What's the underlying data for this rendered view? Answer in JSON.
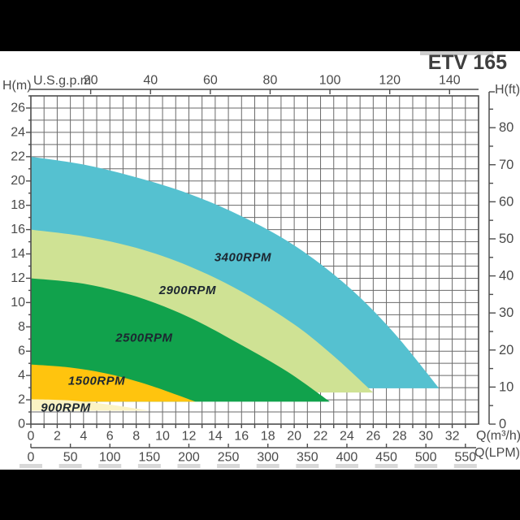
{
  "page": {
    "title": "ETV 165"
  },
  "chart_data": {
    "type": "area",
    "title": "ETV 165",
    "grid": true,
    "x_axis_bottom": {
      "label": "Q(m³/h)",
      "min": 0,
      "max": 34,
      "minor_tick_step": 1,
      "tick_labels": [
        0,
        2,
        4,
        6,
        8,
        10,
        12,
        14,
        16,
        18,
        20,
        22,
        24,
        26,
        28,
        30,
        32
      ]
    },
    "x_axis_secondary": {
      "label": "Q(LPM)",
      "tick_labels": [
        0,
        50,
        100,
        150,
        200,
        250,
        300,
        350,
        400,
        450,
        500,
        550
      ]
    },
    "x_axis_top": {
      "label": "U.S.g.p.m",
      "tick_labels": [
        20,
        40,
        60,
        80,
        100,
        120,
        140
      ]
    },
    "y_axis_left": {
      "label": "H(m)",
      "min": 0,
      "max": 27,
      "minor_tick_step": 1,
      "tick_labels": [
        0,
        2,
        4,
        6,
        8,
        10,
        12,
        14,
        16,
        18,
        20,
        22,
        24,
        26
      ]
    },
    "y_axis_right": {
      "label": "H(ft)",
      "tick_labels": [
        0,
        10,
        20,
        30,
        40,
        50,
        60,
        70,
        80
      ],
      "minor_tick_step": 5
    },
    "series": [
      {
        "name": "3400RPM",
        "color": "#55c1d0",
        "base": 2.95,
        "label_at": [
          16.1,
          13.7
        ],
        "points": [
          [
            0,
            22
          ],
          [
            4,
            21.35
          ],
          [
            8,
            20.3
          ],
          [
            12,
            18.95
          ],
          [
            16,
            17.1
          ],
          [
            20,
            14.7
          ],
          [
            24,
            11.4
          ],
          [
            27.5,
            7.6
          ],
          [
            31,
            2.95
          ]
        ]
      },
      {
        "name": "2900RPM",
        "color": "#cfe294",
        "base": 2.6,
        "label_at": [
          11.9,
          11.0
        ],
        "points": [
          [
            0,
            16
          ],
          [
            4,
            15.45
          ],
          [
            8,
            14.5
          ],
          [
            12,
            13.0
          ],
          [
            16,
            10.9
          ],
          [
            20,
            8.2
          ],
          [
            23,
            5.6
          ],
          [
            26,
            2.6
          ]
        ]
      },
      {
        "name": "2500RPM",
        "color": "#11a24c",
        "base": 1.85,
        "label_at": [
          8.6,
          7.1
        ],
        "points": [
          [
            0,
            12
          ],
          [
            4,
            11.55
          ],
          [
            8,
            10.5
          ],
          [
            12,
            8.8
          ],
          [
            16,
            6.5
          ],
          [
            19.5,
            4.3
          ],
          [
            22.7,
            1.85
          ]
        ]
      },
      {
        "name": "1500RPM",
        "color": "#ffc40e",
        "base": 1.85,
        "label_at": [
          5.0,
          3.55
        ],
        "points": [
          [
            0,
            4.9
          ],
          [
            3,
            4.65
          ],
          [
            6,
            4.1
          ],
          [
            9,
            3.2
          ],
          [
            12.5,
            1.85
          ]
        ]
      },
      {
        "name": "900RPM",
        "color": "#fbf3c4",
        "base": 1.1,
        "label_at": [
          2.65,
          1.35
        ],
        "points": [
          [
            0,
            2.05
          ],
          [
            3,
            1.95
          ],
          [
            6,
            1.6
          ],
          [
            9,
            1.1
          ]
        ]
      }
    ]
  },
  "colors": {
    "grid_line": "#6a6a6a",
    "plot_border": "#4d4d4d",
    "axis_line": "#4d4d4d",
    "axis_text": "#4a4a4a",
    "band_label_text": "#1d2731",
    "title_text": "#3e3e3e",
    "background": "#ffffff",
    "letterbox": "#000000"
  }
}
